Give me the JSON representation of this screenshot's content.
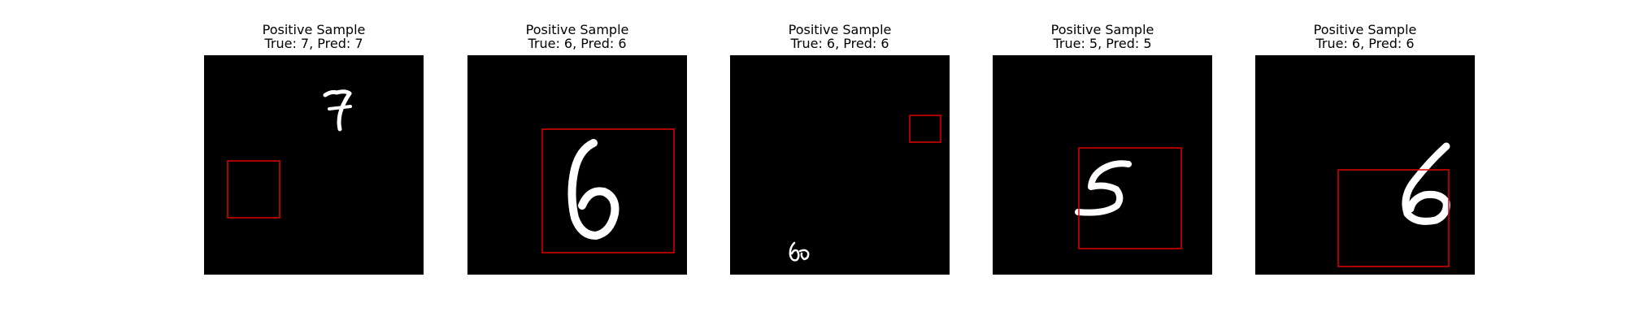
{
  "figure": {
    "panels": [
      {
        "heading": "Positive Sample",
        "label": "True: 7, Pred: 7",
        "true_digit": 7,
        "pred_digit": 7,
        "box_color": "#e00000",
        "digit_color": "#ffffff"
      },
      {
        "heading": "Positive Sample",
        "label": "True: 6, Pred: 6",
        "true_digit": 6,
        "pred_digit": 6,
        "box_color": "#e00000",
        "digit_color": "#ffffff"
      },
      {
        "heading": "Positive Sample",
        "label": "True: 6, Pred: 6",
        "true_digit": 6,
        "pred_digit": 6,
        "box_color": "#e00000",
        "digit_color": "#ffffff"
      },
      {
        "heading": "Positive Sample",
        "label": "True: 5, Pred: 5",
        "true_digit": 5,
        "pred_digit": 5,
        "box_color": "#e00000",
        "digit_color": "#ffffff"
      },
      {
        "heading": "Positive Sample",
        "label": "True: 6, Pred: 6",
        "true_digit": 6,
        "pred_digit": 6,
        "box_color": "#e00000",
        "digit_color": "#ffffff"
      }
    ]
  }
}
